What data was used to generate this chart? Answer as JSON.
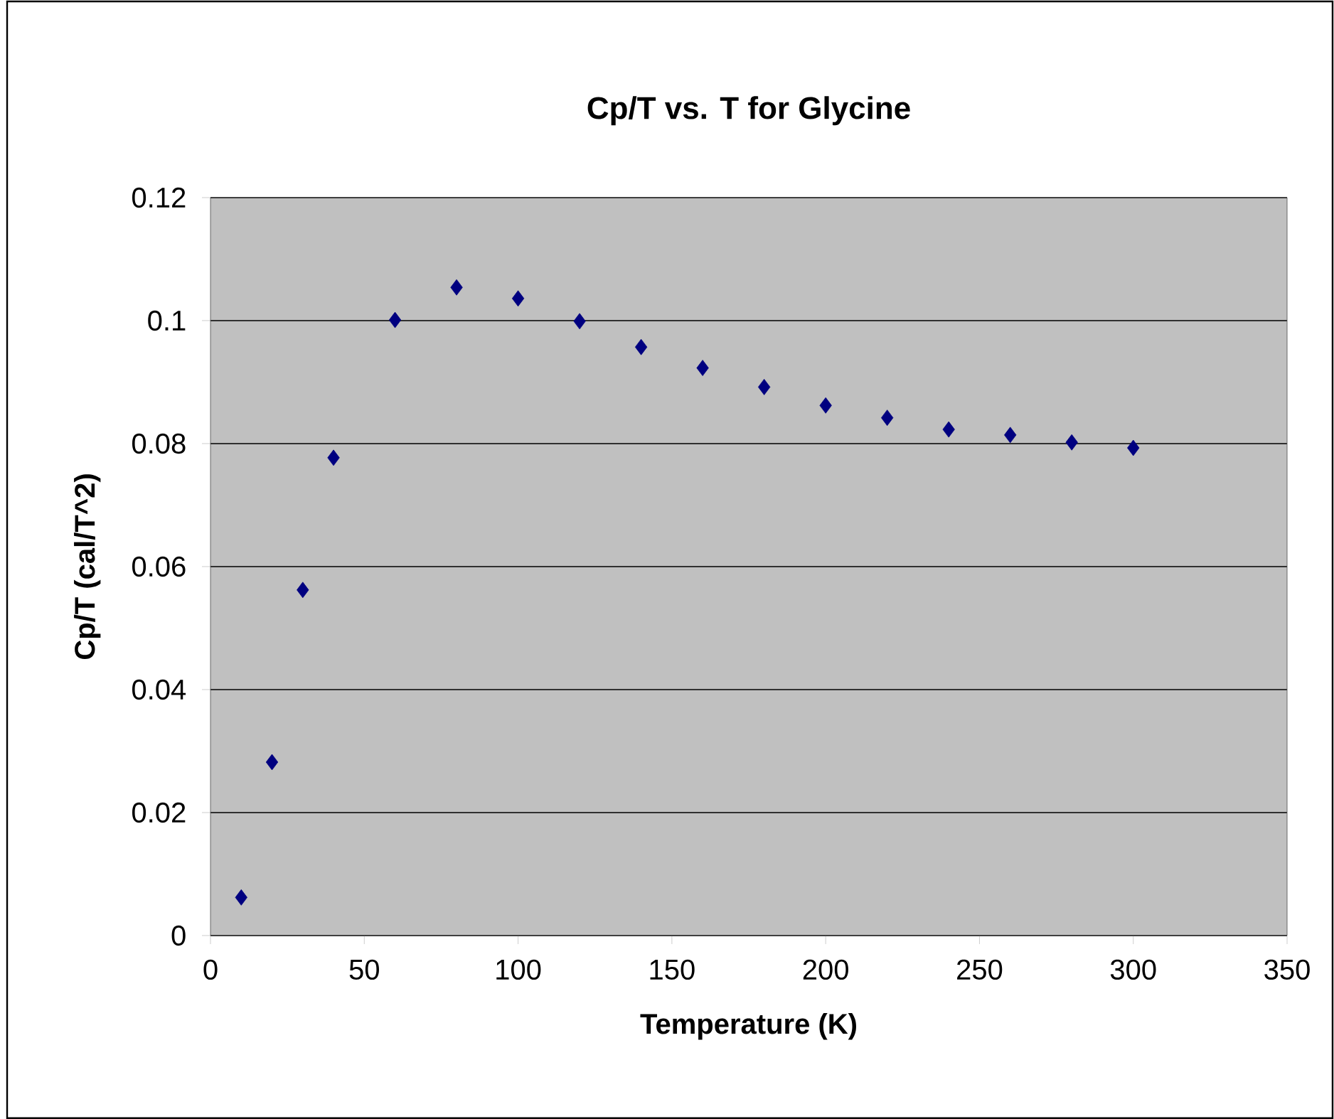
{
  "chart_data": {
    "type": "scatter",
    "title": "Cp/T vs. T for Glycine",
    "xlabel": "Temperature (K)",
    "ylabel": "Cp/T (cal/T^2)",
    "x": [
      10,
      20,
      30,
      40,
      60,
      80,
      100,
      120,
      140,
      160,
      180,
      200,
      220,
      240,
      260,
      280,
      300
    ],
    "values": [
      0.0062,
      0.0282,
      0.0562,
      0.0777,
      0.1001,
      0.1054,
      0.1036,
      0.0999,
      0.0957,
      0.0923,
      0.0892,
      0.0862,
      0.0842,
      0.0823,
      0.0814,
      0.0802,
      0.0793
    ],
    "color": "#000080",
    "marker": "diamond",
    "xlim": [
      0,
      350
    ],
    "xticks": [
      0,
      50,
      100,
      150,
      200,
      250,
      300,
      350
    ],
    "ylim": [
      0,
      0.12
    ],
    "yticks": [
      0,
      0.02,
      0.04,
      0.06,
      0.08,
      0.1,
      0.12
    ],
    "grid": "y"
  }
}
